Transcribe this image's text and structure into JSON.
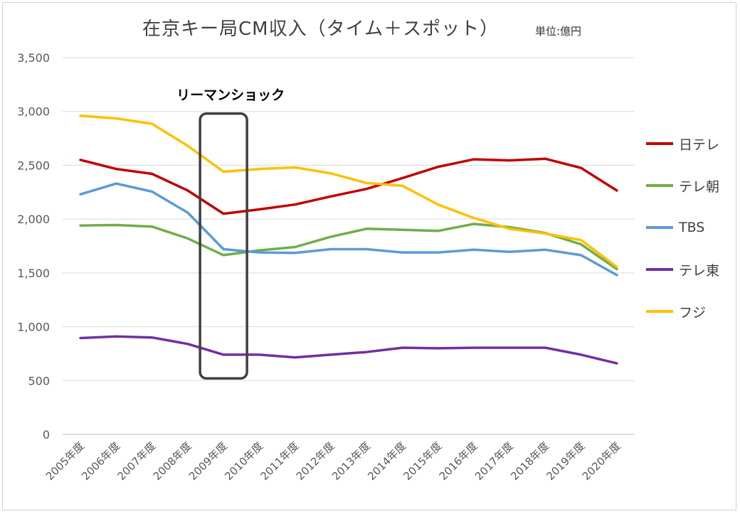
{
  "chart_data": {
    "type": "line",
    "title": "在京キー局CM収入（タイム＋スポット）",
    "unit_label": "単位:億円",
    "annotation": "リーマンショック",
    "highlight_category": "2009年度",
    "ylim": [
      0,
      3500
    ],
    "yticks": [
      "0",
      "500",
      "1,000",
      "1,500",
      "2,000",
      "2,500",
      "3,000",
      "3,500"
    ],
    "grid": true,
    "legend_position": "right",
    "categories": [
      "2005年度",
      "2006年度",
      "2007年度",
      "2008年度",
      "2009年度",
      "2010年度",
      "2011年度",
      "2012年度",
      "2013年度",
      "2014年度",
      "2015年度",
      "2016年度",
      "2017年度",
      "2018年度",
      "2019年度",
      "2020年度"
    ],
    "series": [
      {
        "name": "日テレ",
        "color": "#c00000",
        "values": [
          2550,
          2465,
          2420,
          2265,
          2050,
          2090,
          2135,
          2210,
          2280,
          2380,
          2485,
          2555,
          2545,
          2560,
          2475,
          2265
        ]
      },
      {
        "name": "テレ朝",
        "color": "#70ad47",
        "values": [
          1940,
          1945,
          1930,
          1820,
          1665,
          1710,
          1740,
          1835,
          1910,
          1900,
          1890,
          1955,
          1925,
          1870,
          1765,
          1535
        ]
      },
      {
        "name": "TBS",
        "color": "#5b9bd5",
        "values": [
          2230,
          2330,
          2255,
          2060,
          1720,
          1690,
          1685,
          1720,
          1720,
          1690,
          1690,
          1715,
          1695,
          1715,
          1665,
          1480
        ]
      },
      {
        "name": "テレ東",
        "color": "#7030a0",
        "values": [
          895,
          910,
          900,
          840,
          740,
          740,
          715,
          740,
          765,
          805,
          800,
          805,
          805,
          805,
          740,
          660
        ]
      },
      {
        "name": "フジ",
        "color": "#ffc000",
        "values": [
          2960,
          2935,
          2885,
          2680,
          2440,
          2465,
          2480,
          2425,
          2335,
          2310,
          2135,
          2010,
          1910,
          1865,
          1805,
          1555
        ]
      }
    ]
  }
}
